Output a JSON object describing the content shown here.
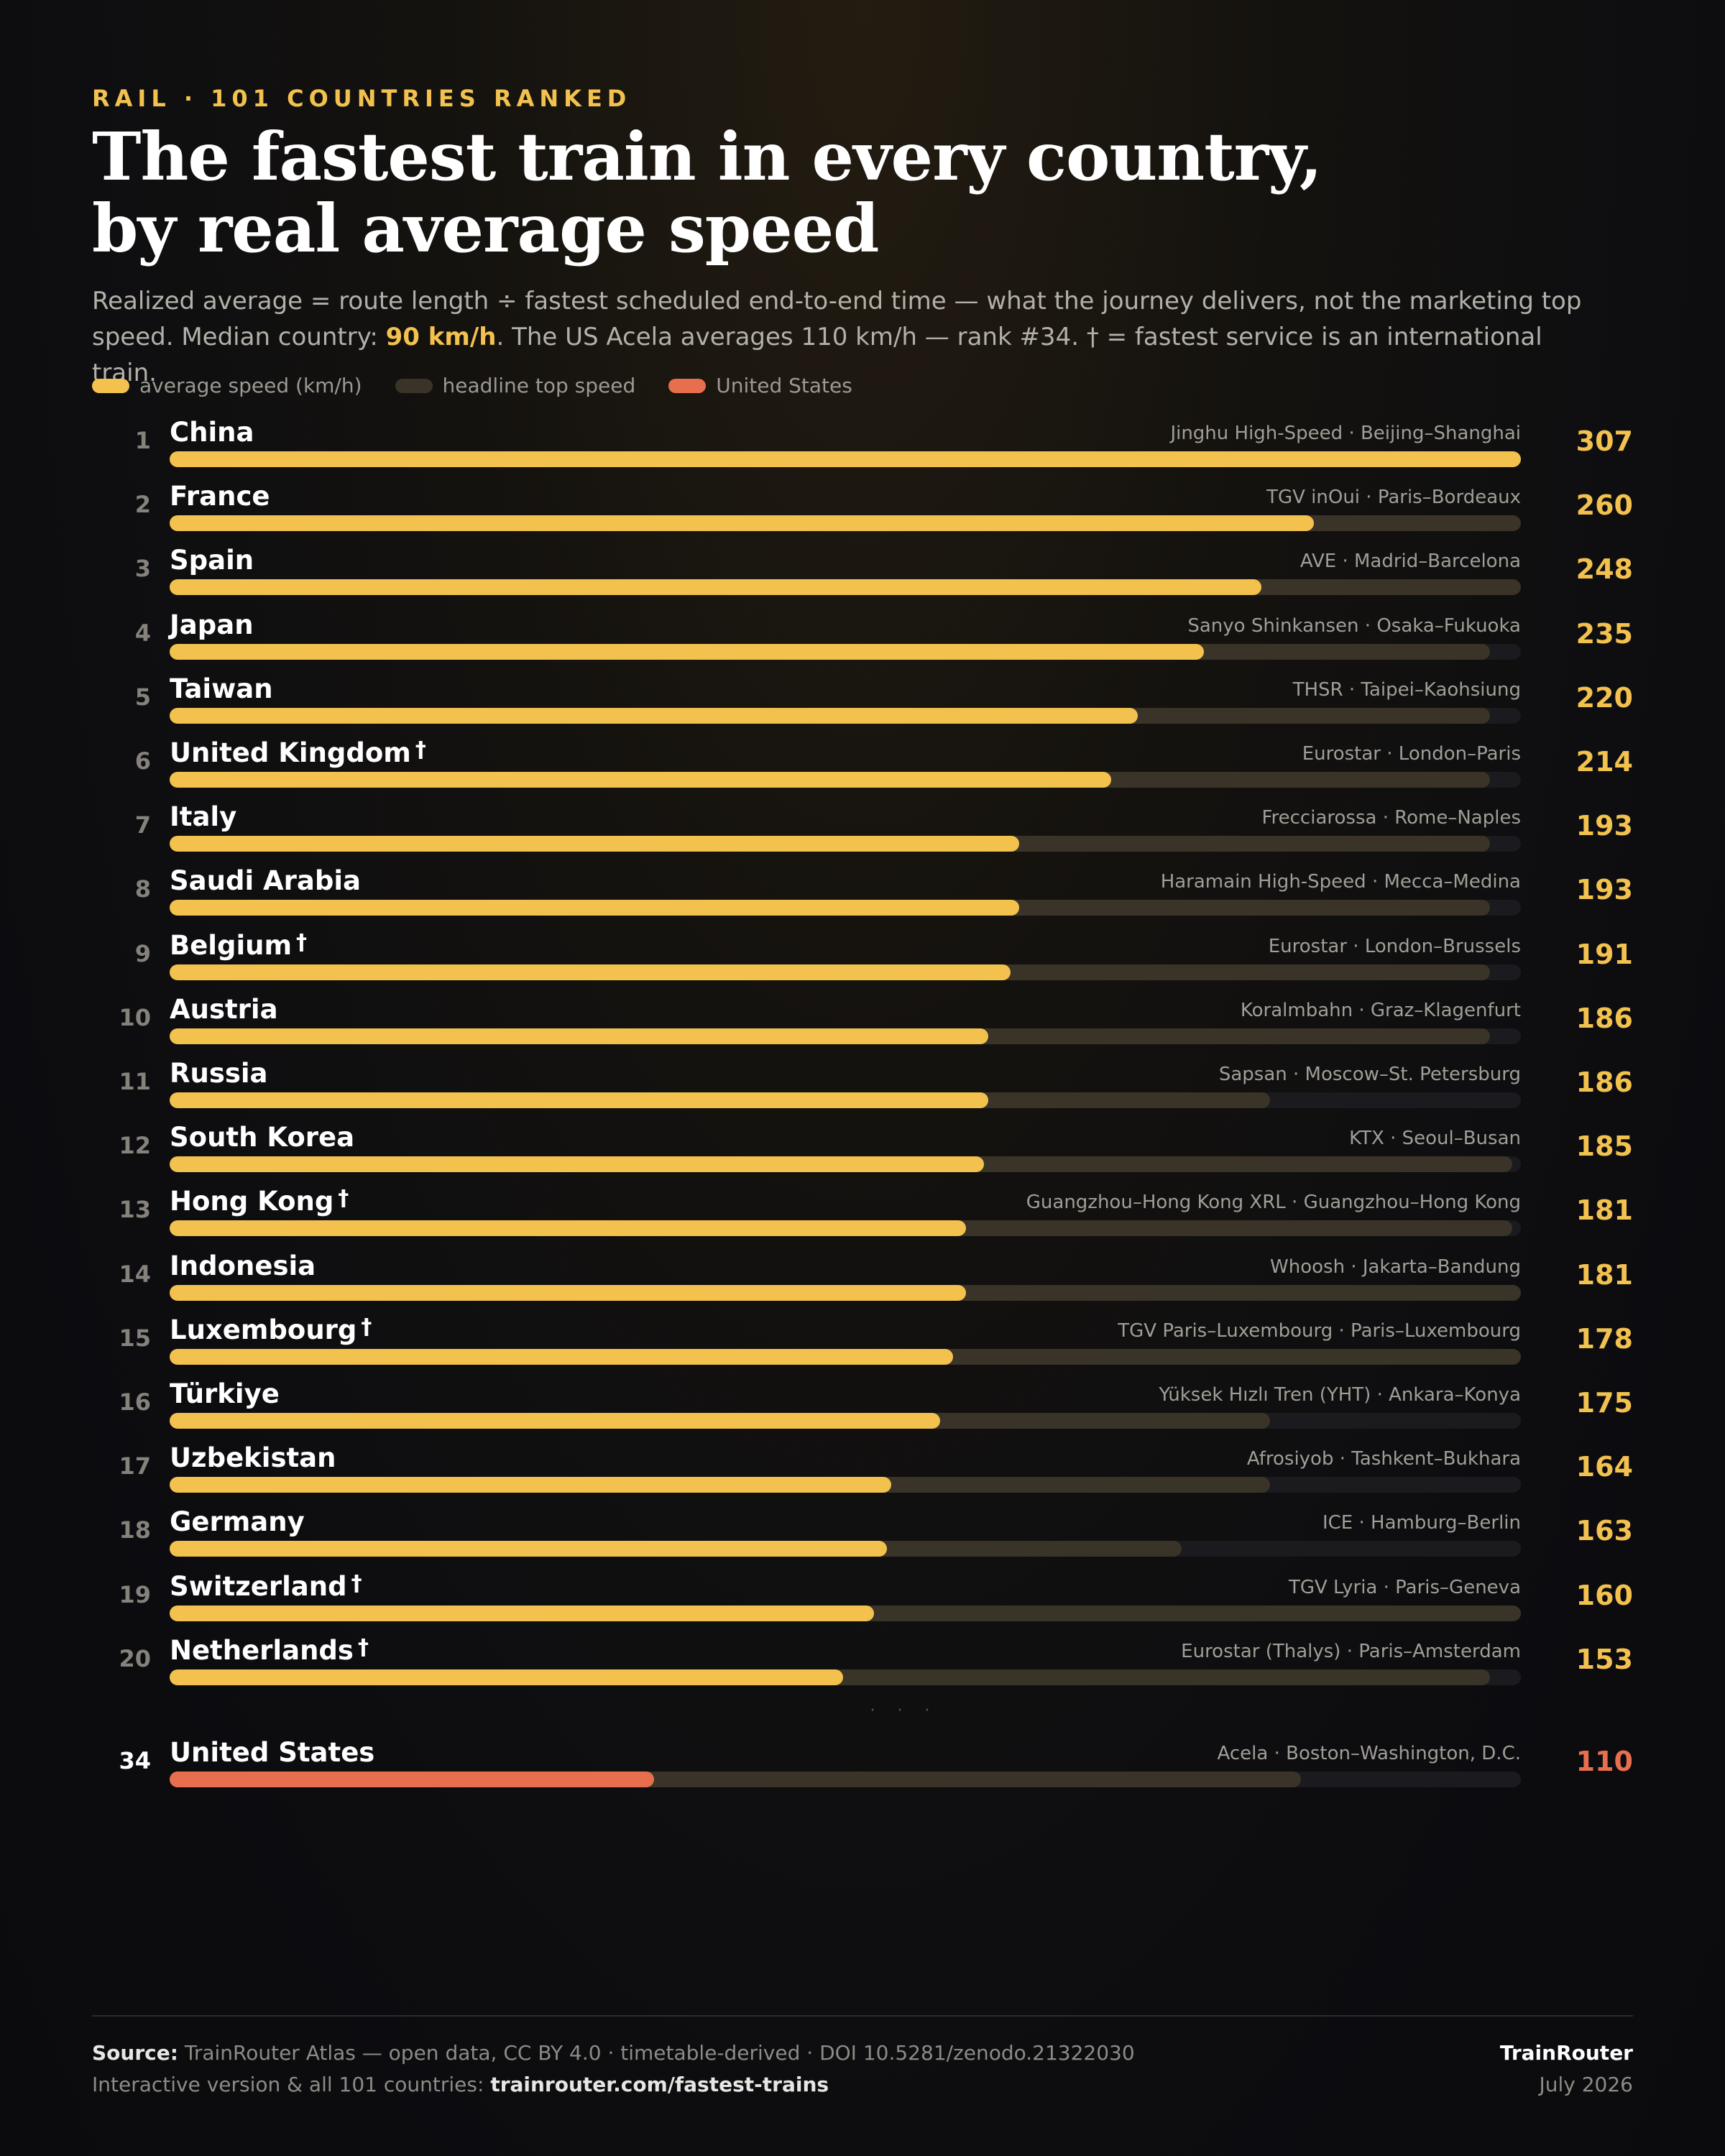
{
  "header": {
    "kicker": "RAIL · 101 COUNTRIES RANKED",
    "title_line1": "The fastest train in every country,",
    "title_line2": "by real average speed",
    "subtitle_part1": "Realized average = route length ÷ fastest scheduled end-to-end time — what the journey delivers, not the marketing top speed. Median country: ",
    "subtitle_highlight": "90 km/h",
    "subtitle_part2": ". The US Acela averages 110 km/h — rank #34. † = fastest service is an international train."
  },
  "legend": {
    "average": "average speed (km/h)",
    "top": "headline top speed",
    "us": "United States"
  },
  "colors": {
    "average": "#f2c14e",
    "top": "#3a3327",
    "us": "#e86f4e",
    "track": "#1a1a1f"
  },
  "chart_data": {
    "type": "bar",
    "orientation": "horizontal",
    "xlim": [
      0,
      307
    ],
    "series": [
      {
        "name": "average speed (km/h)"
      },
      {
        "name": "headline top speed"
      }
    ],
    "rows": [
      {
        "rank": "1",
        "country": "China",
        "dagger": "",
        "service": "Jinghu High-Speed · Beijing–Shanghai",
        "avg": 307,
        "top": 307,
        "label": "307"
      },
      {
        "rank": "2",
        "country": "France",
        "dagger": "",
        "service": "TGV inOui · Paris–Bordeaux",
        "avg": 260,
        "top": 307,
        "label": "260"
      },
      {
        "rank": "3",
        "country": "Spain",
        "dagger": "",
        "service": "AVE · Madrid–Barcelona",
        "avg": 248,
        "top": 307,
        "label": "248"
      },
      {
        "rank": "4",
        "country": "Japan",
        "dagger": "",
        "service": "Sanyo Shinkansen · Osaka–Fukuoka",
        "avg": 235,
        "top": 300,
        "label": "235"
      },
      {
        "rank": "5",
        "country": "Taiwan",
        "dagger": "",
        "service": "THSR · Taipei–Kaohsiung",
        "avg": 220,
        "top": 300,
        "label": "220"
      },
      {
        "rank": "6",
        "country": "United Kingdom",
        "dagger": "†",
        "service": "Eurostar · London–Paris",
        "avg": 214,
        "top": 300,
        "label": "214"
      },
      {
        "rank": "7",
        "country": "Italy",
        "dagger": "",
        "service": "Frecciarossa · Rome–Naples",
        "avg": 193,
        "top": 300,
        "label": "193"
      },
      {
        "rank": "8",
        "country": "Saudi Arabia",
        "dagger": "",
        "service": "Haramain High-Speed · Mecca–Medina",
        "avg": 193,
        "top": 300,
        "label": "193"
      },
      {
        "rank": "9",
        "country": "Belgium",
        "dagger": "†",
        "service": "Eurostar · London–Brussels",
        "avg": 191,
        "top": 300,
        "label": "191"
      },
      {
        "rank": "10",
        "country": "Austria",
        "dagger": "",
        "service": "Koralmbahn · Graz–Klagenfurt",
        "avg": 186,
        "top": 300,
        "label": "186"
      },
      {
        "rank": "11",
        "country": "Russia",
        "dagger": "",
        "service": "Sapsan · Moscow–St. Petersburg",
        "avg": 186,
        "top": 250,
        "label": "186"
      },
      {
        "rank": "12",
        "country": "South Korea",
        "dagger": "",
        "service": "KTX · Seoul–Busan",
        "avg": 185,
        "top": 305,
        "label": "185"
      },
      {
        "rank": "13",
        "country": "Hong Kong",
        "dagger": "†",
        "service": "Guangzhou–Hong Kong XRL · Guangzhou–Hong Kong",
        "avg": 181,
        "top": 305,
        "label": "181"
      },
      {
        "rank": "14",
        "country": "Indonesia",
        "dagger": "",
        "service": "Whoosh · Jakarta–Bandung",
        "avg": 181,
        "top": 307,
        "label": "181"
      },
      {
        "rank": "15",
        "country": "Luxembourg",
        "dagger": "†",
        "service": "TGV Paris–Luxembourg · Paris–Luxembourg",
        "avg": 178,
        "top": 307,
        "label": "178"
      },
      {
        "rank": "16",
        "country": "Türkiye",
        "dagger": "",
        "service": "Yüksek Hızlı Tren (YHT) · Ankara–Konya",
        "avg": 175,
        "top": 250,
        "label": "175"
      },
      {
        "rank": "17",
        "country": "Uzbekistan",
        "dagger": "",
        "service": "Afrosiyob · Tashkent–Bukhara",
        "avg": 164,
        "top": 250,
        "label": "164"
      },
      {
        "rank": "18",
        "country": "Germany",
        "dagger": "",
        "service": "ICE · Hamburg–Berlin",
        "avg": 163,
        "top": 230,
        "label": "163"
      },
      {
        "rank": "19",
        "country": "Switzerland",
        "dagger": "†",
        "service": "TGV Lyria · Paris–Geneva",
        "avg": 160,
        "top": 307,
        "label": "160"
      },
      {
        "rank": "20",
        "country": "Netherlands",
        "dagger": "†",
        "service": "Eurostar (Thalys) · Paris–Amsterdam",
        "avg": 153,
        "top": 300,
        "label": "153"
      }
    ],
    "ellipsis": "· · ·",
    "us_row": {
      "rank": "34",
      "country": "United States",
      "dagger": "",
      "service": "Acela · Boston–Washington, D.C.",
      "avg": 110,
      "top": 257,
      "label": "110"
    }
  },
  "footer": {
    "source_label": "Source:",
    "source_text": " TrainRouter Atlas — open data, CC BY 4.0 · timetable-derived · DOI 10.5281/zenodo.21322030",
    "interactive_text": "Interactive version & all 101 countries: ",
    "interactive_link": "trainrouter.com/fastest-trains",
    "brand_a": "Train",
    "brand_b": "Router",
    "date": "July 2026"
  }
}
